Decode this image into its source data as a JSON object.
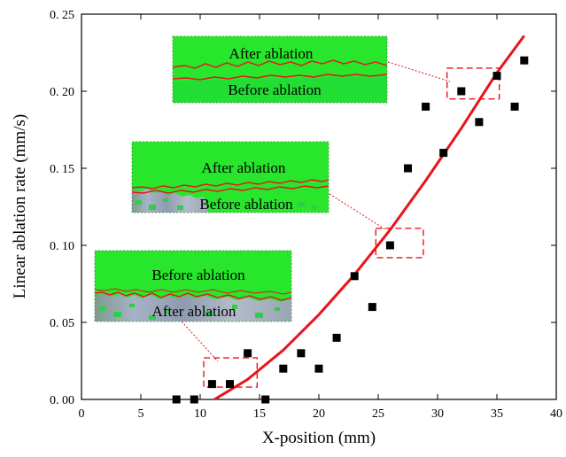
{
  "chart_data": {
    "type": "scatter",
    "xlabel": "X-position (mm)",
    "ylabel": "Linear ablation rate (mm/s)",
    "xlim": [
      0,
      40
    ],
    "ylim": [
      0,
      0.25
    ],
    "x_ticks": [
      0,
      5,
      10,
      15,
      20,
      25,
      30,
      35,
      40
    ],
    "x_tick_labels": [
      "0",
      "5",
      "10",
      "15",
      "20",
      "25",
      "30",
      "35",
      "40"
    ],
    "y_ticks": [
      0,
      0.05,
      0.1,
      0.15,
      0.2,
      0.25
    ],
    "y_tick_labels": [
      "0. 00",
      "0. 05",
      "0. 10",
      "0. 15",
      "0. 20",
      "0. 25"
    ],
    "grid": false,
    "series": [
      {
        "marker": "square",
        "color": "#000000",
        "x": [
          8.0,
          9.5,
          11.0,
          12.5,
          14.0,
          15.5,
          17.0,
          18.5,
          20.0,
          21.5,
          23.0,
          24.5,
          26.0,
          27.5,
          29.0,
          30.5,
          32.0,
          33.5,
          35.0,
          36.5,
          37.3
        ],
        "y": [
          0.0,
          0.0,
          0.01,
          0.01,
          0.03,
          0.0,
          0.02,
          0.03,
          0.02,
          0.04,
          0.08,
          0.06,
          0.1,
          0.15,
          0.19,
          0.16,
          0.2,
          0.18,
          0.21,
          0.19,
          0.22
        ]
      },
      {
        "type": "line",
        "color": "#e8141c",
        "x": [
          11.2,
          14,
          17,
          20,
          23,
          26,
          29,
          32,
          35,
          37.3
        ],
        "y": [
          0.0,
          0.013,
          0.032,
          0.055,
          0.081,
          0.11,
          0.142,
          0.176,
          0.212,
          0.236
        ]
      }
    ],
    "highlight_boxes": [
      {
        "x": [
          10.3,
          14.8
        ],
        "y": [
          0.008,
          0.027
        ]
      },
      {
        "x": [
          24.8,
          28.8
        ],
        "y": [
          0.092,
          0.111
        ]
      },
      {
        "x": [
          30.8,
          35.2
        ],
        "y": [
          0.195,
          0.215
        ]
      }
    ],
    "insets": [
      {
        "top_label": "Before ablation",
        "bottom_label": "After ablation"
      },
      {
        "top_label": "After ablation",
        "bottom_label": "Before ablation"
      },
      {
        "top_label": "After ablation",
        "bottom_label": "Before ablation"
      }
    ],
    "colors": {
      "fit_line": "#e8141c",
      "marker": "#000000",
      "inset_fill": "#27e62b",
      "callout": "#e8141c"
    }
  }
}
